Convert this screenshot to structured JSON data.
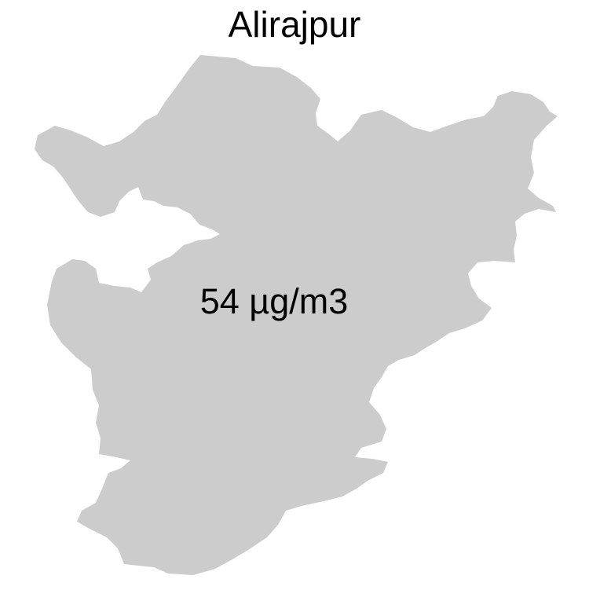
{
  "map": {
    "title": "Alirajpur",
    "value_label": "54 µg/m3",
    "region_fill": "#cccccc",
    "background": "#ffffff"
  }
}
